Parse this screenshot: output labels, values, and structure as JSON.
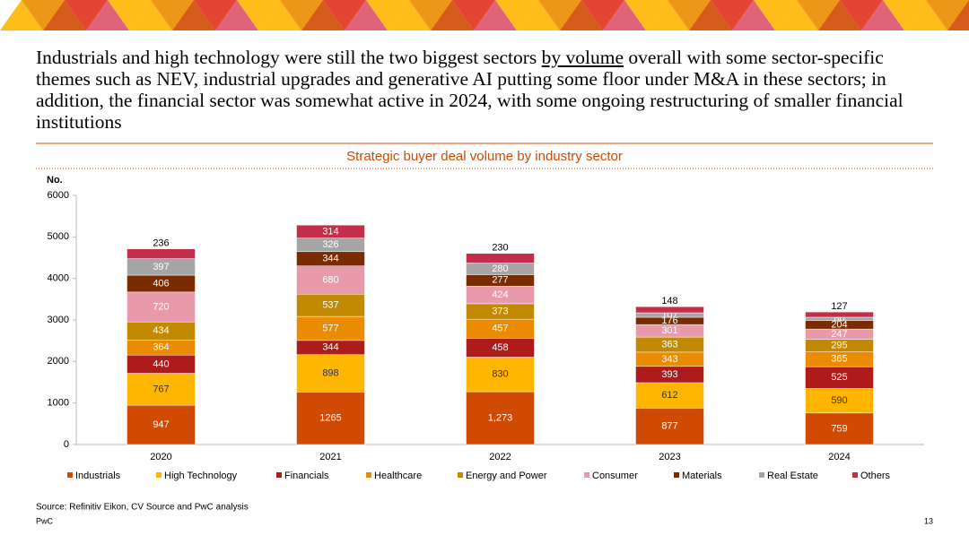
{
  "headline": {
    "before": "Industrials and high technology were still the two biggest sectors ",
    "underlined": "by volume",
    "after": " overall with some sector-specific themes such as NEV, industrial upgrades and generative AI putting some floor under M&A in these sectors; in addition, the financial sector was somewhat active in 2024, with some ongoing restructuring of smaller financial institutions"
  },
  "chart_data": {
    "type": "stacked_bar",
    "title": "Strategic buyer deal volume by industry sector",
    "y_label": "No.",
    "categories": [
      "2020",
      "2021",
      "2022",
      "2023",
      "2024"
    ],
    "series": [
      {
        "name": "Industrials",
        "color": "#d04a02",
        "values": [
          947,
          1265,
          1273,
          877,
          759
        ],
        "value_labels": [
          "947",
          "1265",
          "1,273",
          "877",
          "759"
        ]
      },
      {
        "name": "High Technology",
        "color": "#ffb600",
        "values": [
          767,
          898,
          830,
          612,
          590
        ]
      },
      {
        "name": "Financials",
        "color": "#ad1b1b",
        "values": [
          440,
          344,
          458,
          393,
          525
        ]
      },
      {
        "name": "Healthcare",
        "color": "#eb8c00",
        "values": [
          364,
          577,
          457,
          343,
          365
        ]
      },
      {
        "name": "Energy and Power",
        "color": "#c28a00",
        "values": [
          434,
          537,
          373,
          363,
          295
        ]
      },
      {
        "name": "Consumer",
        "color": "#e89aaa",
        "values": [
          720,
          680,
          424,
          301,
          247
        ]
      },
      {
        "name": "Materials",
        "color": "#7a2b00",
        "values": [
          406,
          344,
          277,
          176,
          204
        ]
      },
      {
        "name": "Real Estate",
        "color": "#a5a5a5",
        "values": [
          397,
          326,
          280,
          107,
          80
        ]
      },
      {
        "name": "Others",
        "color": "#c52e4a",
        "values": [
          236,
          314,
          230,
          148,
          127
        ]
      }
    ],
    "ylim": [
      0,
      6000
    ],
    "yticks": [
      0,
      1000,
      2000,
      3000,
      4000,
      5000,
      6000
    ],
    "legend": "bottom"
  },
  "footer": {
    "source": "Source: Refinitiv Eikon, CV Source and PwC analysis",
    "brand": "PwC",
    "page": "13"
  }
}
